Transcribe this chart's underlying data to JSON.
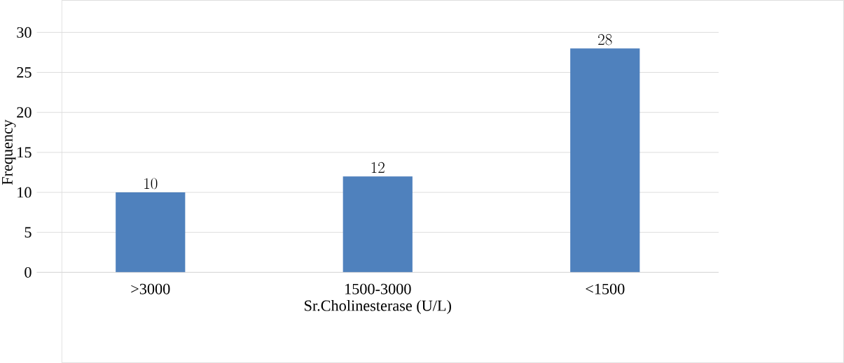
{
  "chart_data": {
    "type": "bar",
    "xlabel": "Sr.Cholinesterase (U/L)",
    "ylabel": "Frequency",
    "categories": [
      ">3000",
      "1500-3000",
      "<1500"
    ],
    "values": [
      10,
      12,
      28
    ],
    "color": "#4f81bd",
    "ylim": [
      0,
      30
    ],
    "yticks": [
      0,
      5,
      10,
      15,
      20,
      25,
      30
    ],
    "grid": "y",
    "data_labels": true
  }
}
